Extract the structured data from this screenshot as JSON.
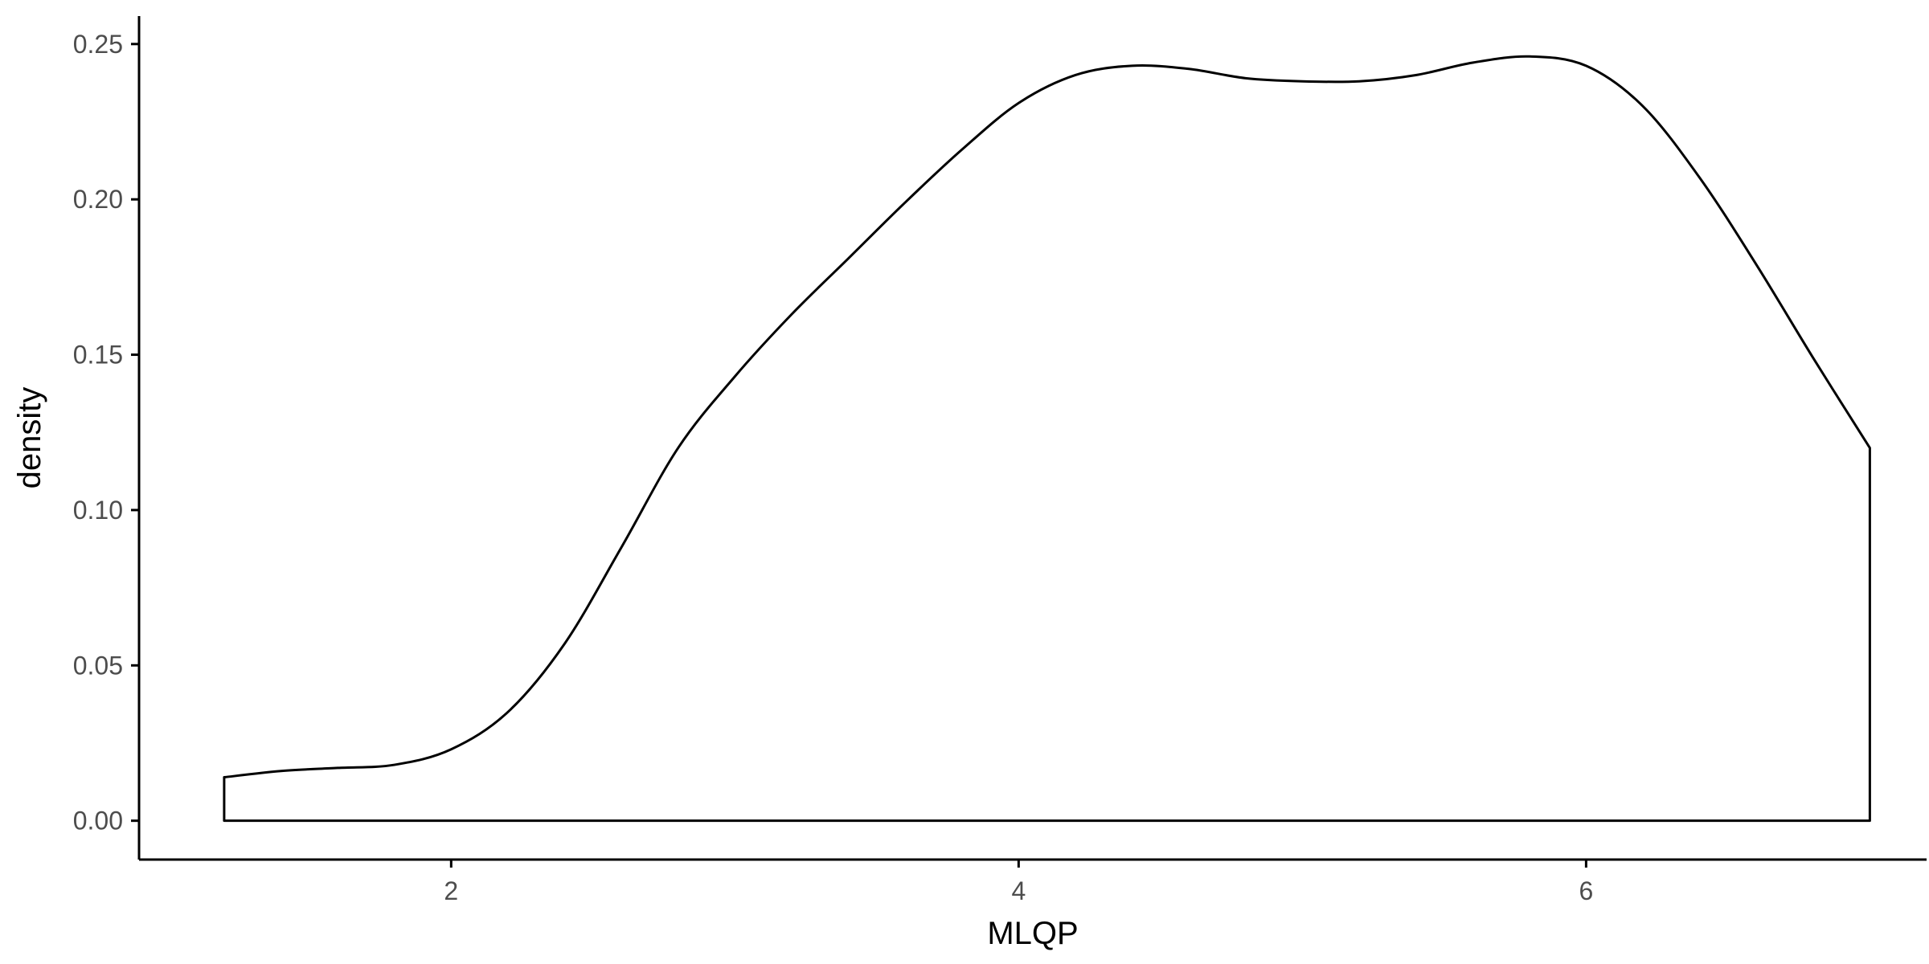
{
  "chart_data": {
    "type": "area",
    "title": "",
    "xlabel": "MLQP",
    "ylabel": "density",
    "xlim": [
      0.9,
      7.2
    ],
    "ylim": [
      -0.0125,
      0.259
    ],
    "x_ticks": [
      2,
      4,
      6
    ],
    "x_tick_labels": [
      "2",
      "4",
      "6"
    ],
    "y_ticks": [
      0.0,
      0.05,
      0.1,
      0.15,
      0.2,
      0.25
    ],
    "y_tick_labels": [
      "0.00",
      "0.05",
      "0.10",
      "0.15",
      "0.20",
      "0.25"
    ],
    "grid": false,
    "legend": "none",
    "line_color": "#000000",
    "fill_color": "#ffffff",
    "series": [
      {
        "x": [
          1.2,
          1.4,
          1.6,
          1.8,
          2.0,
          2.2,
          2.4,
          2.6,
          2.8,
          3.0,
          3.2,
          3.4,
          3.6,
          3.8,
          4.0,
          4.2,
          4.4,
          4.6,
          4.8,
          5.0,
          5.2,
          5.4,
          5.6,
          5.8,
          6.0,
          6.2,
          6.4,
          6.6,
          6.8,
          7.0
        ],
        "y": [
          0.014,
          0.016,
          0.017,
          0.018,
          0.023,
          0.035,
          0.057,
          0.088,
          0.12,
          0.143,
          0.163,
          0.181,
          0.199,
          0.216,
          0.231,
          0.24,
          0.243,
          0.242,
          0.239,
          0.238,
          0.238,
          0.24,
          0.244,
          0.246,
          0.243,
          0.23,
          0.207,
          0.179,
          0.149,
          0.12
        ]
      }
    ]
  }
}
